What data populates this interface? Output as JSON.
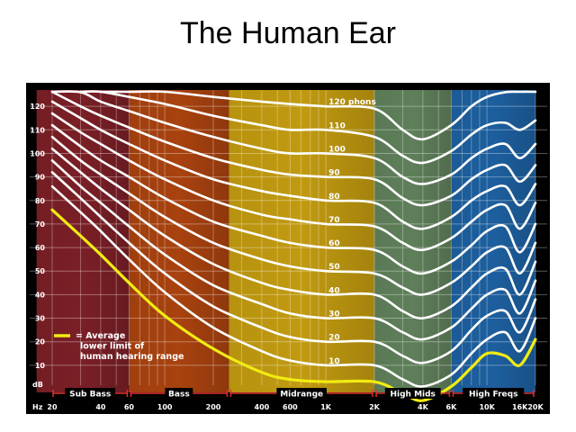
{
  "title": "The Human Ear",
  "chart_data": {
    "type": "line",
    "title": "The Human Ear",
    "xlabel": "Hz",
    "ylabel": "dB",
    "x_scale": "log",
    "xlim": [
      20,
      20000
    ],
    "ylim": [
      0,
      130
    ],
    "grid": true,
    "x_ticks": [
      {
        "value": 20,
        "label": "20"
      },
      {
        "value": 40,
        "label": "40"
      },
      {
        "value": 60,
        "label": "60"
      },
      {
        "value": 100,
        "label": "100"
      },
      {
        "value": 200,
        "label": "200"
      },
      {
        "value": 400,
        "label": "400"
      },
      {
        "value": 600,
        "label": "600"
      },
      {
        "value": 1000,
        "label": "1K"
      },
      {
        "value": 2000,
        "label": "2K"
      },
      {
        "value": 4000,
        "label": "4K"
      },
      {
        "value": 6000,
        "label": "6K"
      },
      {
        "value": 10000,
        "label": "10K"
      },
      {
        "value": 16000,
        "label": "16K"
      },
      {
        "value": 20000,
        "label": "20K"
      }
    ],
    "y_ticks": [
      10,
      20,
      30,
      40,
      50,
      60,
      70,
      80,
      90,
      100,
      110,
      120
    ],
    "bands": [
      {
        "label": "Sub Bass",
        "from": 16,
        "to": 60,
        "color": "#7a1f26"
      },
      {
        "label": "Bass",
        "from": 60,
        "to": 250,
        "color": "#a8420f"
      },
      {
        "label": "Midrange",
        "from": 250,
        "to": 2000,
        "color": "#c19a10"
      },
      {
        "label": "High Mids",
        "from": 2000,
        "to": 6000,
        "color": "#5f7f5a"
      },
      {
        "label": "High Freqs",
        "from": 6000,
        "to": 20000,
        "color": "#1d5f9e"
      }
    ],
    "x": [
      20,
      30,
      40,
      60,
      100,
      200,
      400,
      600,
      1000,
      2000,
      3000,
      4000,
      6000,
      8000,
      10000,
      13000,
      16000,
      20000
    ],
    "series": [
      {
        "name": "120 phons",
        "label": "120 phons",
        "values": [
          null,
          null,
          132,
          129,
          127,
          124,
          122,
          121,
          120,
          119,
          110,
          106,
          112,
          120,
          124,
          126,
          127,
          128
        ]
      },
      {
        "name": "110",
        "label": "110",
        "values": [
          null,
          130,
          128,
          124,
          121,
          116,
          112,
          110,
          110,
          107,
          99,
          96,
          101,
          108,
          112,
          113,
          110,
          114
        ]
      },
      {
        "name": "100",
        "label": "100",
        "values": [
          131,
          126,
          122,
          118,
          113,
          107,
          102,
          100,
          100,
          98,
          90,
          87,
          91,
          98,
          102,
          104,
          98,
          104
        ]
      },
      {
        "name": "90",
        "label": "90",
        "values": [
          127,
          120,
          116,
          111,
          105,
          98,
          93,
          91,
          90,
          89,
          81,
          78,
          82,
          89,
          93,
          95,
          88,
          95
        ]
      },
      {
        "name": "80",
        "label": "80",
        "values": [
          122,
          115,
          110,
          104,
          97,
          89,
          84,
          82,
          80,
          79,
          71,
          68,
          73,
          80,
          84,
          86,
          78,
          87
        ]
      },
      {
        "name": "70",
        "label": "70",
        "values": [
          117,
          109,
          104,
          97,
          89,
          80,
          74,
          72,
          70,
          69,
          62,
          59,
          64,
          71,
          76,
          78,
          68,
          79
        ]
      },
      {
        "name": "60",
        "label": "60",
        "values": [
          112,
          103,
          97,
          90,
          81,
          71,
          65,
          62,
          60,
          59,
          52,
          49,
          54,
          61,
          67,
          69,
          58,
          70
        ]
      },
      {
        "name": "50",
        "label": "50",
        "values": [
          107,
          97,
          91,
          83,
          73,
          62,
          55,
          52,
          50,
          49,
          43,
          40,
          45,
          52,
          58,
          60,
          49,
          62
        ]
      },
      {
        "name": "40",
        "label": "40",
        "values": [
          102,
          92,
          85,
          76,
          65,
          53,
          45,
          42,
          40,
          40,
          33,
          30,
          35,
          43,
          49,
          51,
          40,
          54
        ]
      },
      {
        "name": "30",
        "label": "30",
        "values": [
          97,
          86,
          79,
          69,
          57,
          44,
          36,
          32,
          30,
          30,
          24,
          21,
          26,
          34,
          40,
          42,
          32,
          46
        ]
      },
      {
        "name": "20",
        "label": "20",
        "values": [
          92,
          81,
          73,
          62,
          49,
          35,
          26,
          22,
          20,
          20,
          14,
          11,
          16,
          25,
          31,
          33,
          24,
          38
        ]
      },
      {
        "name": "10",
        "label": "10",
        "values": [
          86,
          75,
          67,
          55,
          41,
          26,
          16,
          12,
          10,
          10,
          4,
          1,
          6,
          15,
          21,
          24,
          16,
          30
        ]
      },
      {
        "name": "= Average lower limit of human hearing range",
        "label": "",
        "values": [
          76,
          65,
          57,
          45,
          31,
          17,
          7,
          4,
          3,
          3,
          -2,
          -5,
          1,
          9,
          15,
          14,
          10,
          21
        ]
      }
    ],
    "legend": {
      "position": "bottom-left",
      "lines": [
        "= Average",
        "lower limit of",
        "human hearing range"
      ]
    },
    "colors": {
      "curve": "#ffffff",
      "threshold": "#f2ec12",
      "frame": "#000000",
      "band_marker": "#e03030"
    }
  }
}
